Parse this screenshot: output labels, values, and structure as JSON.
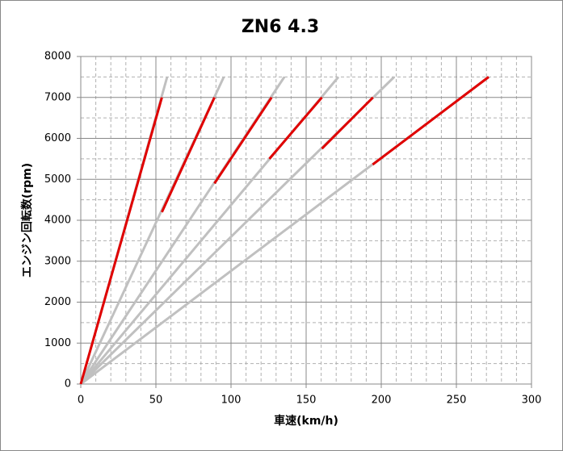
{
  "chart_data": {
    "type": "line",
    "title": "ZN6 4.3",
    "x_label": "車速(km/h)",
    "y_label": "エンジン回転数(rpm)",
    "xlim": [
      0,
      300
    ],
    "xticks": [
      0,
      50,
      100,
      150,
      200,
      250,
      300
    ],
    "ylim": [
      0,
      8000
    ],
    "yticks": [
      0,
      1000,
      2000,
      3000,
      4000,
      5000,
      6000,
      7000,
      8000
    ],
    "grid": true,
    "minor_grid": true,
    "series": [
      {
        "color": "#c0c0c0",
        "x": [
          0,
          57.5
        ],
        "values": [
          0,
          7500
        ]
      },
      {
        "color": "#c0c0c0",
        "x": [
          0,
          95.2
        ],
        "values": [
          0,
          7500
        ]
      },
      {
        "color": "#c0c0c0",
        "x": [
          0,
          135.5
        ],
        "values": [
          0,
          7500
        ]
      },
      {
        "color": "#c0c0c0",
        "x": [
          0,
          171.5
        ],
        "values": [
          0,
          7500
        ]
      },
      {
        "color": "#c0c0c0",
        "x": [
          0,
          208.6
        ],
        "values": [
          0,
          7500
        ]
      },
      {
        "color": "#c0c0c0",
        "x": [
          0,
          271.5
        ],
        "values": [
          0,
          7500
        ]
      },
      {
        "color": "#e00000",
        "x": [
          0,
          54
        ],
        "values": [
          0,
          7000
        ]
      },
      {
        "color": "#e00000",
        "x": [
          54,
          89
        ],
        "values": [
          4200,
          7000
        ]
      },
      {
        "color": "#e00000",
        "x": [
          89,
          127
        ],
        "values": [
          4900,
          7000
        ]
      },
      {
        "color": "#e00000",
        "x": [
          125.5,
          160.5
        ],
        "values": [
          5500,
          7000
        ]
      },
      {
        "color": "#e00000",
        "x": [
          160.5,
          194.5
        ],
        "values": [
          5750,
          7000
        ]
      },
      {
        "color": "#e00000",
        "x": [
          194.3,
          271.5
        ],
        "values": [
          5360,
          7500
        ]
      }
    ]
  }
}
